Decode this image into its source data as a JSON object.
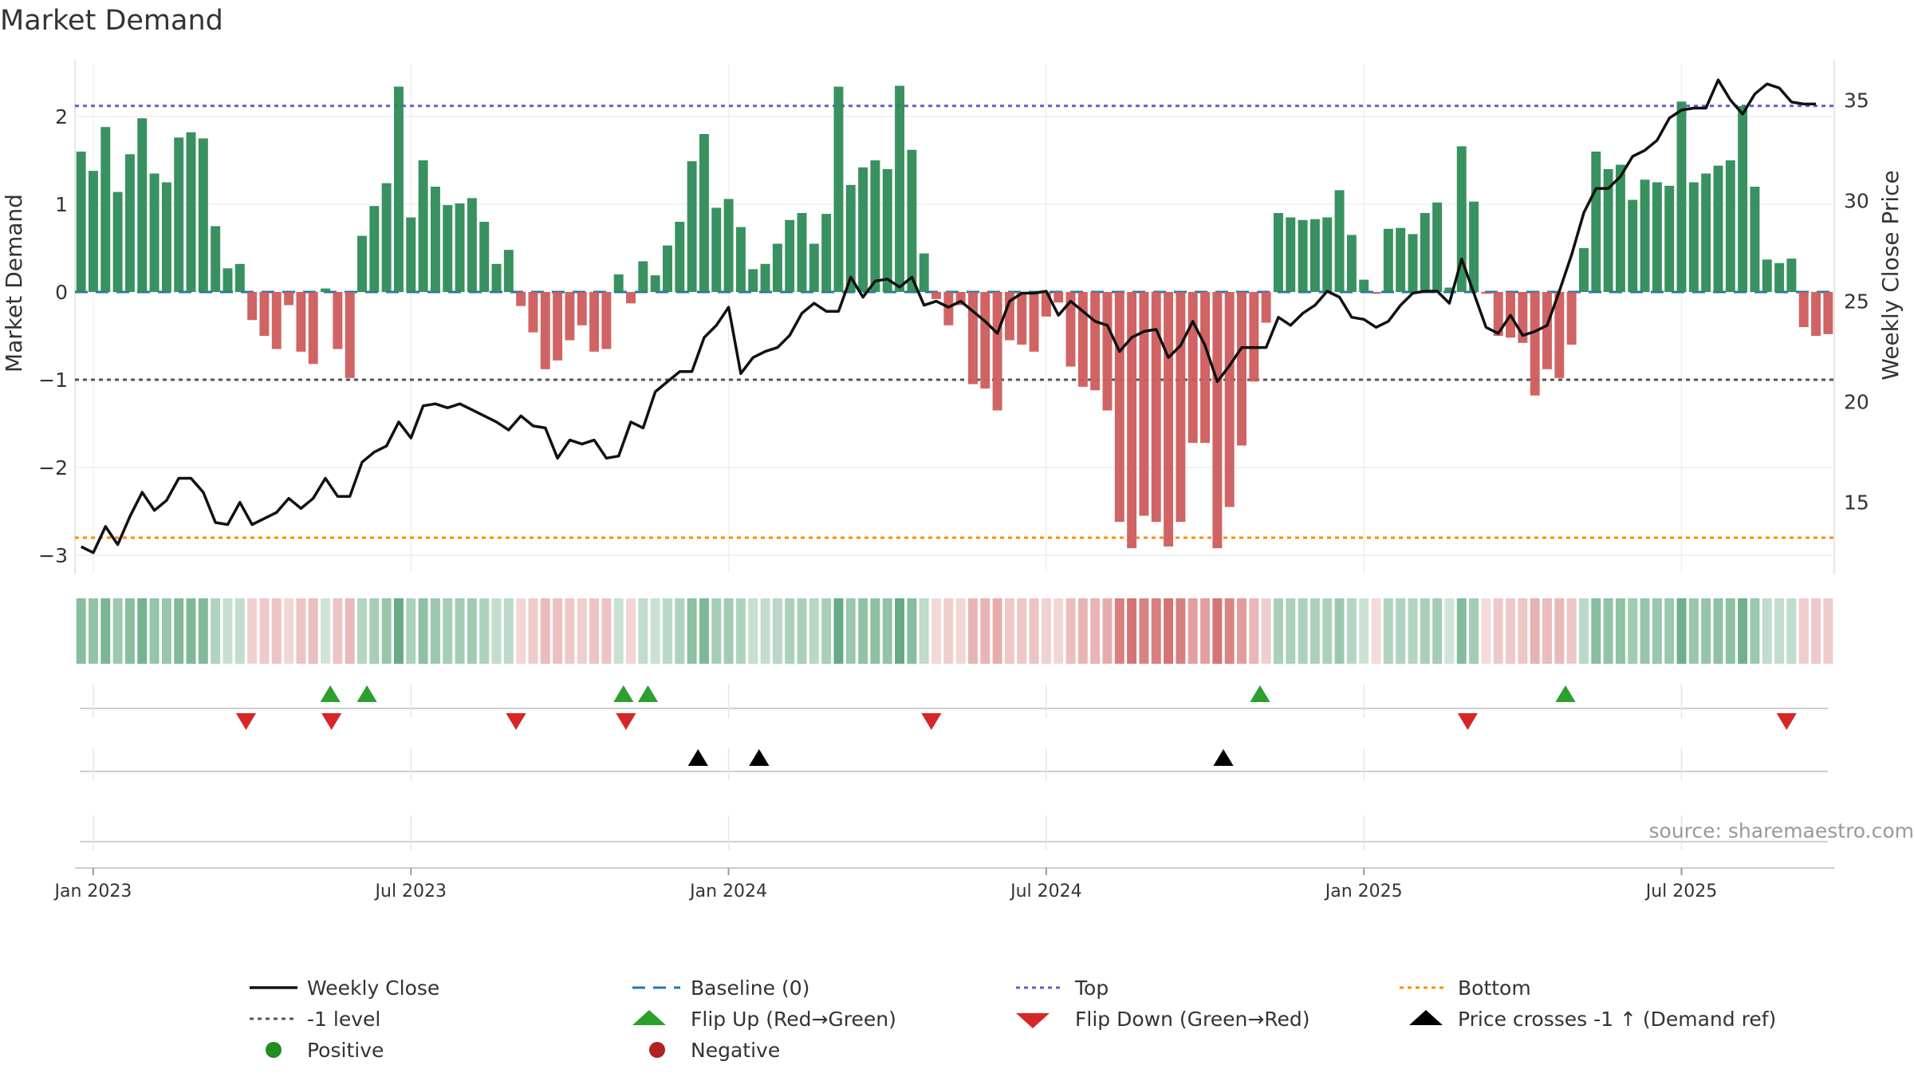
{
  "chart_data": {
    "type": "bar+line",
    "title": "Market Demand",
    "source": "source: sharemaestro.com",
    "left_axis": {
      "label": "Market Demand",
      "ylim": [
        -3.2,
        2.6
      ],
      "ticks": [
        -3,
        -2,
        -1,
        0,
        1,
        2
      ],
      "tick_labels": [
        "−3",
        "−2",
        "−1",
        "0",
        "1",
        "2"
      ]
    },
    "right_axis": {
      "label": "Weekly Close Price",
      "ylim": [
        11.5,
        36.8
      ],
      "ticks": [
        15,
        20,
        25,
        30,
        35
      ],
      "tick_labels": [
        "15",
        "20",
        "25",
        "30",
        "35"
      ]
    },
    "x_ticks": [
      {
        "week": 1.5,
        "label": "Jan 2023"
      },
      {
        "week": 27.5,
        "label": "Jul 2023"
      },
      {
        "week": 53.5,
        "label": "Jan 2024"
      },
      {
        "week": 79.5,
        "label": "Jul 2024"
      },
      {
        "week": 105.5,
        "label": "Jan 2025"
      },
      {
        "week": 131.5,
        "label": "Jul 2025"
      }
    ],
    "reference_lines": {
      "baseline": 0,
      "top": 2.12,
      "bottom": -2.8,
      "minus_one": -1
    },
    "demand": [
      1.6,
      1.38,
      1.88,
      1.14,
      1.57,
      1.98,
      1.35,
      1.25,
      1.76,
      1.82,
      1.75,
      0.75,
      0.27,
      0.32,
      -0.32,
      -0.5,
      -0.65,
      -0.15,
      -0.68,
      -0.82,
      0.04,
      -0.65,
      -0.98,
      0.64,
      0.98,
      1.24,
      2.34,
      0.85,
      1.5,
      1.2,
      0.99,
      1.01,
      1.07,
      0.8,
      0.32,
      0.48,
      -0.16,
      -0.46,
      -0.88,
      -0.78,
      -0.55,
      -0.38,
      -0.68,
      -0.65,
      0.2,
      -0.13,
      0.35,
      0.19,
      0.53,
      0.8,
      1.49,
      1.8,
      0.96,
      1.06,
      0.74,
      0.26,
      0.32,
      0.55,
      0.82,
      0.9,
      0.55,
      0.89,
      2.34,
      1.22,
      1.42,
      1.5,
      1.4,
      2.35,
      1.62,
      0.44,
      -0.08,
      -0.38,
      -0.15,
      -1.05,
      -1.1,
      -1.35,
      -0.55,
      -0.6,
      -0.68,
      -0.28,
      -0.12,
      -0.85,
      -1.08,
      -1.12,
      -1.35,
      -2.62,
      -2.92,
      -2.55,
      -2.62,
      -2.9,
      -2.62,
      -1.72,
      -1.72,
      -2.92,
      -2.45,
      -1.75,
      -1.02,
      -0.35,
      0.9,
      0.85,
      0.82,
      0.83,
      0.85,
      1.16,
      0.65,
      0.14,
      -0.02,
      0.72,
      0.73,
      0.66,
      0.9,
      1.02,
      0.05,
      1.66,
      1.03,
      -0.02,
      -0.5,
      -0.52,
      -0.58,
      -1.18,
      -0.88,
      -0.98,
      -0.6,
      0.5,
      1.6,
      1.4,
      1.45,
      1.05,
      1.28,
      1.25,
      1.21,
      2.17,
      1.25,
      1.35,
      1.44,
      1.5,
      2.12,
      1.2,
      0.37,
      0.33,
      0.38,
      -0.4,
      -0.5,
      -0.48
    ],
    "close": [
      12.8,
      12.5,
      13.8,
      12.9,
      14.3,
      15.5,
      14.6,
      15.1,
      16.2,
      16.2,
      15.5,
      14,
      13.9,
      15,
      13.9,
      14.2,
      14.5,
      15.2,
      14.7,
      15.2,
      16.2,
      15.3,
      15.3,
      17,
      17.5,
      17.8,
      19,
      18.2,
      19.8,
      19.9,
      19.7,
      19.9,
      19.6,
      19.3,
      19,
      18.6,
      19.3,
      18.8,
      18.7,
      17.2,
      18.1,
      17.9,
      18.1,
      17.2,
      17.3,
      19,
      18.7,
      20.5,
      21,
      21.5,
      21.5,
      23.2,
      23.8,
      24.7,
      21.4,
      22.2,
      22.5,
      22.7,
      23.3,
      24.4,
      24.9,
      24.5,
      24.5,
      26.2,
      25.2,
      26,
      26.1,
      25.7,
      26.2,
      24.8,
      25,
      24.7,
      25,
      24.5,
      24,
      23.4,
      25,
      25.4,
      25.4,
      25.5,
      24.3,
      25,
      24.5,
      24,
      23.8,
      22.5,
      23.2,
      23.5,
      23.6,
      22.2,
      22.8,
      24,
      22.8,
      21,
      21.8,
      22.7,
      22.7,
      22.7,
      24.2,
      23.8,
      24.4,
      24.8,
      25.5,
      25.2,
      24.2,
      24.1,
      23.7,
      24,
      24.8,
      25.4,
      25.5,
      25.5,
      24.9,
      27.1,
      25.4,
      23.7,
      23.4,
      24.3,
      23.3,
      23.5,
      23.8,
      25.5,
      27.3,
      29.4,
      30.6,
      30.6,
      31.2,
      32.2,
      32.5,
      33,
      34.1,
      34.5,
      34.6,
      34.6,
      36,
      35,
      34.3,
      35.3,
      35.8,
      35.6,
      34.9,
      34.8,
      34.8
    ],
    "flips_up": [
      20.9,
      23.9,
      44.9,
      46.9,
      97.0,
      122.0
    ],
    "flips_down": [
      14.0,
      21.0,
      36.1,
      45.1,
      70.1,
      114.0,
      140.1
    ],
    "price_crosses": [
      51.0,
      56.0,
      94.0
    ],
    "colors": {
      "positive_bar": "#2e8b57",
      "negative_bar": "#cd5c5c",
      "close_line": "#111111",
      "baseline": "#1f77b4",
      "top_line": "#6a5acd",
      "bottom_line": "#ff8c00",
      "minus_one_line": "#555555",
      "flip_up": "#2ca02c",
      "flip_down": "#d62728",
      "price_cross": "#000000",
      "positive_dot": "#228b22",
      "negative_dot": "#b22222"
    },
    "legend": {
      "weekly_close": "Weekly Close",
      "baseline": "Baseline (0)",
      "top": "Top",
      "bottom": "Bottom",
      "minus_one": "-1 level",
      "flip_up": "Flip Up (Red→Green)",
      "flip_down": "Flip Down (Green→Red)",
      "price_cross": "Price crosses -1 ↑ (Demand ref)",
      "positive": "Positive",
      "negative": "Negative"
    }
  }
}
